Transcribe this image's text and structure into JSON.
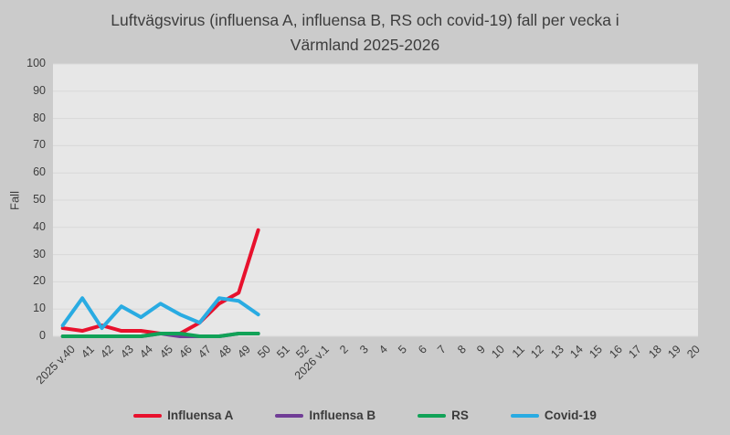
{
  "window": {
    "background": "#cbcbcb",
    "plot_background": "#e7e7e7",
    "gridline_color": "#d8d8d8"
  },
  "chart_data": {
    "type": "line",
    "title": "Luftvägsvirus (influensa A, influensa B, RS och covid-19) fall per vecka i Värmland 2025-2026",
    "title_lines": [
      "Luftvägsvirus (influensa A, influensa B, RS och covid-19) fall per vecka i",
      "Värmland 2025-2026"
    ],
    "xlabel": "",
    "ylabel": "Fall",
    "ylim": [
      0,
      100
    ],
    "ytick_step": 10,
    "grid": true,
    "legend_position": "bottom",
    "categories": [
      "2025 v.40",
      "41",
      "42",
      "43",
      "44",
      "45",
      "46",
      "47",
      "48",
      "49",
      "50",
      "51",
      "52",
      "2026 v.1",
      "2",
      "3",
      "4",
      "5",
      "6",
      "7",
      "8",
      "9",
      "10",
      "11",
      "12",
      "13",
      "14",
      "15",
      "16",
      "17",
      "18",
      "19",
      "20"
    ],
    "series": [
      {
        "name": "Influensa A",
        "color": "#e8112d",
        "values": [
          3,
          2,
          4,
          2,
          2,
          1,
          1,
          5,
          12,
          16,
          39
        ]
      },
      {
        "name": "Influensa B",
        "color": "#703d96",
        "values": [
          0,
          0,
          0,
          0,
          0,
          1,
          0,
          0,
          0,
          1,
          1
        ]
      },
      {
        "name": "RS",
        "color": "#11a257",
        "values": [
          0,
          0,
          0,
          0,
          0,
          1,
          1,
          0,
          0,
          1,
          1
        ]
      },
      {
        "name": "Covid-19",
        "color": "#29abe2",
        "values": [
          4,
          14,
          3,
          11,
          7,
          12,
          8,
          5,
          14,
          13,
          8
        ]
      }
    ]
  }
}
